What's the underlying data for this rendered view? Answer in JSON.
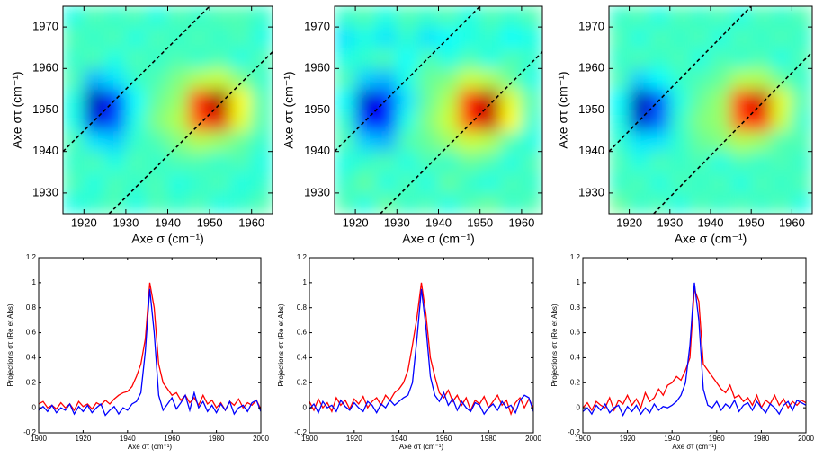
{
  "chart_data": [
    {
      "type": "heatmap",
      "xlabel": "Axe σ (cm⁻¹)",
      "ylabel": "Axe στ (cm⁻¹)",
      "colormap": "jet",
      "zlim": [
        -1,
        1
      ],
      "xlim": [
        1915,
        1965
      ],
      "ylim": [
        1925,
        1975
      ],
      "xticks": [
        1920,
        1930,
        1940,
        1950,
        1960
      ],
      "yticks": [
        1930,
        1940,
        1950,
        1960,
        1970
      ],
      "x": [
        1917.5,
        1922.5,
        1927.5,
        1932.5,
        1937.5,
        1942.5,
        1947.5,
        1952.5,
        1957.5,
        1962.5
      ],
      "y": [
        1927.5,
        1932.5,
        1937.5,
        1942.5,
        1947.5,
        1952.5,
        1957.5,
        1962.5,
        1967.5,
        1972.5
      ],
      "z": [
        [
          -0.2,
          -0.15,
          -0.1,
          -0.2,
          -0.1,
          -0.15,
          -0.1,
          -0.2,
          -0.15,
          -0.1
        ],
        [
          -0.1,
          -0.2,
          -0.1,
          -0.15,
          -0.1,
          -0.2,
          -0.15,
          -0.1,
          -0.2,
          -0.15
        ],
        [
          -0.15,
          -0.1,
          -0.2,
          -0.1,
          -0.15,
          -0.1,
          -0.1,
          -0.15,
          -0.1,
          -0.2
        ],
        [
          -0.1,
          -0.3,
          -0.35,
          -0.15,
          -0.1,
          0.0,
          0.1,
          0.05,
          -0.05,
          -0.15
        ],
        [
          -0.2,
          -0.8,
          -0.6,
          -0.2,
          0.0,
          0.1,
          0.6,
          0.8,
          0.2,
          -0.1
        ],
        [
          -0.2,
          -0.9,
          -0.7,
          -0.25,
          -0.05,
          0.05,
          0.7,
          0.95,
          0.25,
          -0.1
        ],
        [
          -0.1,
          -0.4,
          -0.3,
          -0.15,
          -0.1,
          0.0,
          0.1,
          0.15,
          0.0,
          -0.15
        ],
        [
          -0.15,
          -0.1,
          -0.2,
          -0.1,
          -0.15,
          -0.1,
          -0.15,
          -0.1,
          -0.2,
          -0.1
        ],
        [
          -0.1,
          -0.15,
          -0.1,
          -0.2,
          -0.1,
          -0.15,
          -0.1,
          -0.15,
          -0.1,
          -0.2
        ],
        [
          -0.2,
          -0.1,
          -0.15,
          -0.1,
          -0.2,
          -0.1,
          -0.15,
          -0.1,
          -0.1,
          -0.15
        ]
      ]
    },
    {
      "type": "heatmap",
      "xlabel": "Axe σ (cm⁻¹)",
      "ylabel": "Axe στ (cm⁻¹)",
      "colormap": "jet",
      "zlim": [
        -1,
        1
      ],
      "xlim": [
        1915,
        1965
      ],
      "ylim": [
        1925,
        1975
      ],
      "xticks": [
        1920,
        1930,
        1940,
        1950,
        1960
      ],
      "yticks": [
        1930,
        1940,
        1950,
        1960,
        1970
      ],
      "x": [
        1917.5,
        1922.5,
        1927.5,
        1932.5,
        1937.5,
        1942.5,
        1947.5,
        1952.5,
        1957.5,
        1962.5
      ],
      "y": [
        1927.5,
        1932.5,
        1937.5,
        1942.5,
        1947.5,
        1952.5,
        1957.5,
        1962.5,
        1967.5,
        1972.5
      ],
      "z": [
        [
          -0.1,
          -0.2,
          -0.05,
          -0.15,
          -0.1,
          -0.2,
          -0.1,
          -0.05,
          -0.15,
          -0.1
        ],
        [
          -0.15,
          -0.05,
          -0.2,
          -0.1,
          -0.2,
          -0.05,
          -0.15,
          -0.2,
          -0.1,
          -0.15
        ],
        [
          -0.2,
          -0.15,
          -0.1,
          -0.2,
          -0.1,
          -0.15,
          -0.05,
          -0.1,
          -0.2,
          -0.1
        ],
        [
          -0.1,
          -0.35,
          -0.4,
          -0.1,
          -0.05,
          0.05,
          0.15,
          0.1,
          -0.1,
          -0.2
        ],
        [
          -0.15,
          -0.75,
          -0.7,
          -0.2,
          0.0,
          0.15,
          0.65,
          0.85,
          0.25,
          -0.15
        ],
        [
          -0.25,
          -0.85,
          -0.75,
          -0.3,
          -0.05,
          0.1,
          0.75,
          0.9,
          0.2,
          -0.1
        ],
        [
          -0.1,
          -0.35,
          -0.4,
          -0.2,
          -0.05,
          0.0,
          0.15,
          0.1,
          -0.05,
          -0.2
        ],
        [
          -0.2,
          -0.15,
          -0.1,
          -0.25,
          -0.1,
          -0.2,
          -0.1,
          -0.2,
          -0.1,
          -0.15
        ],
        [
          -0.3,
          -0.2,
          -0.3,
          -0.15,
          -0.3,
          -0.25,
          -0.2,
          -0.15,
          -0.25,
          -0.2
        ],
        [
          -0.15,
          -0.1,
          -0.2,
          -0.1,
          -0.15,
          -0.1,
          -0.2,
          -0.1,
          -0.15,
          -0.1
        ]
      ]
    },
    {
      "type": "heatmap",
      "xlabel": "Axe σ (cm⁻¹)",
      "ylabel": "Axe στ (cm⁻¹)",
      "colormap": "jet",
      "zlim": [
        -1,
        1
      ],
      "xlim": [
        1915,
        1965
      ],
      "ylim": [
        1925,
        1975
      ],
      "xticks": [
        1920,
        1930,
        1940,
        1950,
        1960
      ],
      "yticks": [
        1930,
        1940,
        1950,
        1960,
        1970
      ],
      "x": [
        1917.5,
        1922.5,
        1927.5,
        1932.5,
        1937.5,
        1942.5,
        1947.5,
        1952.5,
        1957.5,
        1962.5
      ],
      "y": [
        1927.5,
        1932.5,
        1937.5,
        1942.5,
        1947.5,
        1952.5,
        1957.5,
        1962.5,
        1967.5,
        1972.5
      ],
      "z": [
        [
          -0.05,
          -0.15,
          -0.1,
          -0.2,
          -0.1,
          -0.15,
          -0.1,
          -0.15,
          -0.1,
          -0.2
        ],
        [
          -0.15,
          -0.1,
          -0.2,
          -0.1,
          -0.15,
          -0.1,
          -0.2,
          -0.1,
          -0.15,
          -0.1
        ],
        [
          -0.1,
          -0.2,
          -0.1,
          -0.15,
          -0.1,
          -0.2,
          -0.1,
          -0.15,
          -0.1,
          -0.15
        ],
        [
          -0.15,
          -0.3,
          -0.3,
          -0.15,
          -0.05,
          0.0,
          0.1,
          0.05,
          -0.1,
          -0.1
        ],
        [
          -0.2,
          -0.85,
          -0.55,
          -0.15,
          0.0,
          0.05,
          0.6,
          0.75,
          0.15,
          -0.15
        ],
        [
          -0.25,
          -0.9,
          -0.6,
          -0.2,
          -0.05,
          0.05,
          0.7,
          0.85,
          0.2,
          -0.1
        ],
        [
          -0.1,
          -0.35,
          -0.25,
          -0.15,
          -0.1,
          -0.05,
          0.1,
          0.1,
          -0.05,
          -0.15
        ],
        [
          -0.15,
          -0.1,
          -0.15,
          -0.1,
          -0.2,
          -0.1,
          -0.15,
          -0.1,
          -0.2,
          -0.1
        ],
        [
          -0.1,
          -0.2,
          -0.1,
          -0.15,
          -0.1,
          -0.2,
          -0.1,
          -0.15,
          -0.1,
          -0.15
        ],
        [
          -0.15,
          -0.1,
          -0.2,
          -0.1,
          -0.15,
          -0.1,
          -0.2,
          -0.1,
          -0.15,
          -0.1
        ]
      ]
    },
    {
      "type": "line",
      "xlabel": "Axe στ (cm⁻¹)",
      "ylabel": "Projections στ (Re et Abs)",
      "xlim": [
        1900,
        2000
      ],
      "ylim": [
        -0.2,
        1.2
      ],
      "xticks": [
        1900,
        1920,
        1940,
        1960,
        1980,
        2000
      ],
      "yticks": [
        -0.2,
        0,
        0.2,
        0.4,
        0.6,
        0.8,
        1,
        1.2
      ],
      "x": [
        1900,
        1902,
        1904,
        1906,
        1908,
        1910,
        1912,
        1914,
        1916,
        1918,
        1920,
        1922,
        1924,
        1926,
        1928,
        1930,
        1932,
        1934,
        1936,
        1938,
        1940,
        1942,
        1944,
        1946,
        1948,
        1950,
        1952,
        1954,
        1956,
        1958,
        1960,
        1962,
        1964,
        1966,
        1968,
        1970,
        1972,
        1974,
        1976,
        1978,
        1980,
        1982,
        1984,
        1986,
        1988,
        1990,
        1992,
        1994,
        1996,
        1998,
        2000
      ],
      "series": [
        {
          "color": "#ff0000",
          "values": [
            0.03,
            0.05,
            0.0,
            0.02,
            -0.01,
            0.04,
            0.0,
            0.03,
            -0.02,
            0.05,
            0.01,
            0.03,
            -0.01,
            0.04,
            0.02,
            0.06,
            0.03,
            0.07,
            0.1,
            0.12,
            0.13,
            0.17,
            0.25,
            0.35,
            0.55,
            1,
            0.8,
            0.35,
            0.2,
            0.15,
            0.1,
            0.12,
            0.06,
            0.1,
            0.04,
            0.08,
            0.02,
            0.1,
            0.03,
            0.06,
            0.0,
            0.04,
            -0.02,
            0.05,
            0.02,
            0.07,
            0.0,
            0.04,
            0.02,
            0.06,
            -0.01
          ]
        },
        {
          "color": "#0000ff",
          "values": [
            -0.02,
            0.01,
            -0.03,
            0.02,
            -0.04,
            0.0,
            -0.02,
            0.03,
            -0.05,
            0.01,
            -0.03,
            0.02,
            -0.04,
            0.0,
            0.03,
            -0.06,
            -0.02,
            0.01,
            -0.05,
            0.0,
            -0.02,
            0.03,
            0.05,
            0.12,
            0.45,
            0.95,
            0.6,
            0.1,
            -0.02,
            0.03,
            0.08,
            -0.01,
            0.04,
            0.1,
            -0.02,
            0.12,
            0.0,
            0.05,
            -0.03,
            0.02,
            -0.04,
            0.03,
            -0.02,
            0.05,
            -0.05,
            0.0,
            0.02,
            -0.03,
            0.04,
            0.06,
            -0.03
          ]
        }
      ]
    },
    {
      "type": "line",
      "xlabel": "Axe στ (cm⁻¹)",
      "ylabel": "Projections στ (Re et Abs)",
      "xlim": [
        1900,
        2000
      ],
      "ylim": [
        -0.2,
        1.2
      ],
      "xticks": [
        1900,
        1920,
        1940,
        1960,
        1980,
        2000
      ],
      "yticks": [
        -0.2,
        0,
        0.2,
        0.4,
        0.6,
        0.8,
        1,
        1.2
      ],
      "x": [
        1900,
        1902,
        1904,
        1906,
        1908,
        1910,
        1912,
        1914,
        1916,
        1918,
        1920,
        1922,
        1924,
        1926,
        1928,
        1930,
        1932,
        1934,
        1936,
        1938,
        1940,
        1942,
        1944,
        1946,
        1948,
        1950,
        1952,
        1954,
        1956,
        1958,
        1960,
        1962,
        1964,
        1966,
        1968,
        1970,
        1972,
        1974,
        1976,
        1978,
        1980,
        1982,
        1984,
        1986,
        1988,
        1990,
        1992,
        1994,
        1996,
        1998,
        2000
      ],
      "series": [
        {
          "color": "#ff0000",
          "values": [
            0.05,
            -0.02,
            0.07,
            0.0,
            0.04,
            -0.03,
            0.08,
            0.02,
            0.06,
            -0.01,
            0.07,
            0.03,
            0.09,
            0.0,
            0.05,
            0.08,
            0.02,
            0.1,
            0.06,
            0.12,
            0.15,
            0.2,
            0.3,
            0.5,
            0.72,
            1,
            0.75,
            0.4,
            0.25,
            0.12,
            0.08,
            0.14,
            0.05,
            0.1,
            0.02,
            0.08,
            -0.02,
            0.06,
            0.03,
            0.09,
            0.0,
            0.05,
            0.1,
            0.02,
            0.06,
            -0.05,
            0.04,
            0.08,
            0.0,
            0.07,
            0.0
          ]
        },
        {
          "color": "#0000ff",
          "values": [
            -0.01,
            0.03,
            -0.04,
            0.05,
            0.0,
            0.02,
            -0.03,
            0.06,
            0.01,
            -0.02,
            0.04,
            0.0,
            -0.03,
            0.05,
            0.02,
            -0.04,
            0.03,
            0.0,
            0.06,
            0.02,
            0.05,
            0.08,
            0.1,
            0.2,
            0.55,
            0.95,
            0.65,
            0.25,
            0.1,
            0.05,
            0.12,
            0.02,
            0.07,
            -0.02,
            0.05,
            0.0,
            -0.03,
            0.04,
            0.02,
            -0.05,
            0.0,
            0.03,
            -0.02,
            0.05,
            0.0,
            0.02,
            -0.04,
            0.06,
            0.1,
            0.08,
            -0.03
          ]
        }
      ]
    },
    {
      "type": "line",
      "xlabel": "Axe στ (cm⁻¹)",
      "ylabel": "Projections στ (Re et Abs)",
      "xlim": [
        1900,
        2000
      ],
      "ylim": [
        -0.2,
        1.2
      ],
      "xticks": [
        1900,
        1920,
        1940,
        1960,
        1980,
        2000
      ],
      "yticks": [
        -0.2,
        0,
        0.2,
        0.4,
        0.6,
        0.8,
        1,
        1.2
      ],
      "x": [
        1900,
        1902,
        1904,
        1906,
        1908,
        1910,
        1912,
        1914,
        1916,
        1918,
        1920,
        1922,
        1924,
        1926,
        1928,
        1930,
        1932,
        1934,
        1936,
        1938,
        1940,
        1942,
        1944,
        1946,
        1948,
        1950,
        1952,
        1954,
        1956,
        1958,
        1960,
        1962,
        1964,
        1966,
        1968,
        1970,
        1972,
        1974,
        1976,
        1978,
        1980,
        1982,
        1984,
        1986,
        1988,
        1990,
        1992,
        1994,
        1996,
        1998,
        2000
      ],
      "series": [
        {
          "color": "#ff0000",
          "values": [
            0.0,
            0.04,
            -0.02,
            0.05,
            0.02,
            0.0,
            0.08,
            -0.02,
            0.06,
            0.03,
            0.1,
            0.02,
            0.07,
            0.0,
            0.12,
            0.05,
            0.08,
            0.15,
            0.1,
            0.18,
            0.2,
            0.25,
            0.22,
            0.3,
            0.4,
            0.95,
            0.85,
            0.35,
            0.3,
            0.25,
            0.2,
            0.15,
            0.12,
            0.18,
            0.08,
            0.1,
            0.05,
            0.08,
            0.02,
            0.1,
            0.0,
            0.06,
            0.03,
            0.1,
            0.02,
            0.07,
            0.0,
            0.05,
            0.02,
            0.06,
            0.04
          ]
        },
        {
          "color": "#0000ff",
          "values": [
            -0.03,
            0.0,
            -0.05,
            0.02,
            -0.02,
            0.03,
            -0.04,
            0.0,
            0.02,
            -0.06,
            0.01,
            -0.03,
            0.02,
            -0.05,
            0.0,
            -0.04,
            0.03,
            -0.02,
            0.01,
            0.0,
            0.02,
            0.05,
            0.1,
            0.2,
            0.5,
            1,
            0.7,
            0.15,
            0.02,
            0.0,
            0.05,
            -0.02,
            0.03,
            0.0,
            0.06,
            -0.03,
            0.02,
            0.04,
            -0.02,
            0.05,
            0.0,
            -0.04,
            0.03,
            0.0,
            -0.05,
            0.02,
            0.05,
            -0.02,
            0.06,
            0.04,
            0.02
          ]
        }
      ]
    }
  ]
}
